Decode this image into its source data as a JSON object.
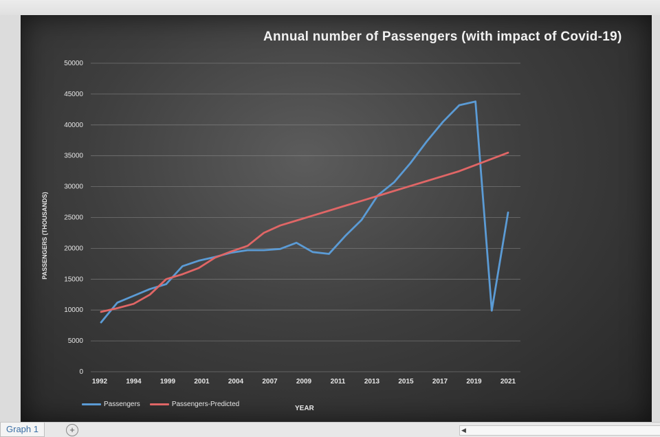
{
  "window": {
    "sheet_tab": "Graph 1",
    "add_sheet_icon": "plus-icon",
    "scroll_left_icon": "triangle-left-icon"
  },
  "chart_data": {
    "type": "line",
    "title": "Annual number of Passengers (with impact of Covid-19)",
    "xlabel": "YEAR",
    "ylabel": "PASSENGERS (THOUSANDS)",
    "ylim": [
      0,
      50000
    ],
    "y_ticks": [
      "0",
      "5000",
      "10000",
      "15000",
      "20000",
      "25000",
      "30000",
      "35000",
      "40000",
      "45000",
      "50000"
    ],
    "x_tick_labels": [
      "1992",
      "1994",
      "1999",
      "2001",
      "2004",
      "2007",
      "2009",
      "2011",
      "2013",
      "2015",
      "2017",
      "2019",
      "2021"
    ],
    "grid": true,
    "legend_position": "bottom-left",
    "series": [
      {
        "name": "Passengers",
        "color": "#5b9bd5",
        "values": [
          8000,
          11200,
          12300,
          13400,
          14200,
          17100,
          18000,
          18600,
          19300,
          19700,
          19700,
          19900,
          20900,
          19400,
          19100,
          22000,
          24600,
          28600,
          30700,
          33800,
          37300,
          40500,
          43200,
          43800,
          9900,
          25800
        ]
      },
      {
        "name": "Passengers-Predicted",
        "color": "#e06666",
        "values": [
          9700,
          10300,
          11000,
          12500,
          15000,
          15800,
          16800,
          18500,
          19500,
          20400,
          22500,
          23700,
          24500,
          25300,
          26100,
          26900,
          27700,
          28500,
          29300,
          30100,
          30900,
          31700,
          32500,
          33500,
          34500,
          35500
        ]
      }
    ]
  }
}
